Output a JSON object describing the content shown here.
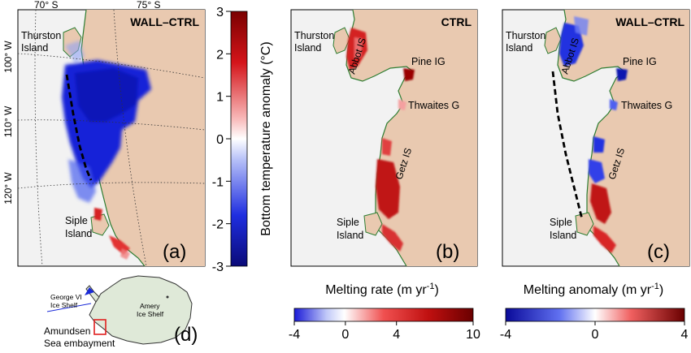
{
  "panel_a": {
    "title": "WALL–CTRL",
    "letter": "(a)",
    "lat_labels": [
      "70° S",
      "75° S"
    ],
    "lon_labels": [
      "100° W",
      "110° W",
      "120° W"
    ],
    "place_thurston_1": "Thurston",
    "place_thurston_2": "Island",
    "place_siple_1": "Siple",
    "place_siple_2": "Island"
  },
  "colorbar_temp": {
    "label": "Bottom temperature anomaly (°C)",
    "ticks": [
      "3",
      "2",
      "1",
      "0",
      "-1",
      "-2",
      "-3"
    ],
    "colors": {
      "max": "#8b0000",
      "mid": "#ffffff",
      "min": "#0a0a8c"
    }
  },
  "panel_b": {
    "title": "CTRL",
    "letter": "(b)",
    "place_thurston_1": "Thurston",
    "place_thurston_2": "Island",
    "abbot": "Abbot IS",
    "pine": "Pine IG",
    "thwaites": "Thwaites G",
    "getz": "Getz IS",
    "place_siple_1": "Siple",
    "place_siple_2": "Island"
  },
  "panel_c": {
    "title": "WALL–CTRL",
    "letter": "(c)",
    "place_thurston_1": "Thurston",
    "place_thurston_2": "Island",
    "abbot": "Abbot IS",
    "pine": "Pine IG",
    "thwaites": "Thwaites G",
    "getz": "Getz IS",
    "place_siple_1": "Siple",
    "place_siple_2": "Island"
  },
  "colorbar_melt": {
    "label": "Melting rate (m yr",
    "sup": "-1",
    "close": ")",
    "ticks": [
      "-4",
      "0",
      "4",
      "10"
    ]
  },
  "colorbar_anom": {
    "label": "Melting anomaly (m yr",
    "sup": "-1",
    "close": ")",
    "ticks": [
      "-4",
      "0",
      "4"
    ]
  },
  "panel_d": {
    "letter": "(d)",
    "george_1": "George VI",
    "george_2": "Ice Shelf",
    "amery_1": "Amery",
    "amery_2": "Ice Shelf",
    "amundsen_1": "Amundsen",
    "amundsen_2": "Sea embayment"
  },
  "colors": {
    "land": "#e9c9b0",
    "ocean": "#f2f2f2",
    "coast": "#2e7d32",
    "warm": "#c0181a",
    "cold": "#1a2ad8",
    "antarctica": "#dfe9d8"
  }
}
